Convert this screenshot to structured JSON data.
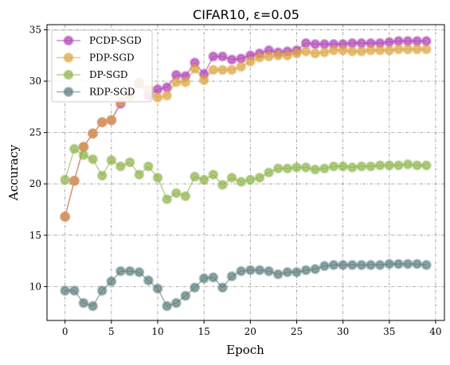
{
  "chart_data": {
    "type": "line",
    "title": "CIFAR10, ε=0.05",
    "xlabel": "Epoch",
    "ylabel": "Accuracy",
    "xlim": [
      -1.95,
      40.95
    ],
    "ylim": [
      6.7,
      35.5
    ],
    "xticks": [
      0,
      5,
      10,
      15,
      20,
      25,
      30,
      35,
      40
    ],
    "yticks": [
      10,
      15,
      20,
      25,
      30,
      35
    ],
    "grid": true,
    "legend_position": "top-left",
    "x": [
      0,
      1,
      2,
      3,
      4,
      5,
      6,
      7,
      8,
      9,
      10,
      11,
      12,
      13,
      14,
      15,
      16,
      17,
      18,
      19,
      20,
      21,
      22,
      23,
      24,
      25,
      26,
      27,
      28,
      29,
      30,
      31,
      32,
      33,
      34,
      35,
      36,
      37,
      38,
      39
    ],
    "series": [
      {
        "name": "PCDP-SGD",
        "color": "#b03fb5",
        "values": [
          16.8,
          20.3,
          23.6,
          24.9,
          26.0,
          26.2,
          27.8,
          28.8,
          29.8,
          28.6,
          29.2,
          29.4,
          30.6,
          30.5,
          31.8,
          30.7,
          32.4,
          32.4,
          32.1,
          32.2,
          32.5,
          32.7,
          33.0,
          32.8,
          32.9,
          33.0,
          33.7,
          33.6,
          33.6,
          33.6,
          33.6,
          33.7,
          33.7,
          33.7,
          33.7,
          33.8,
          33.9,
          33.9,
          33.9,
          33.9
        ]
      },
      {
        "name": "PDP-SGD",
        "color": "#dba43e",
        "values": [
          16.8,
          20.3,
          23.6,
          24.9,
          26.0,
          26.2,
          28.0,
          28.5,
          29.8,
          29.2,
          28.4,
          28.6,
          29.9,
          29.9,
          31.2,
          30.1,
          31.1,
          31.1,
          31.1,
          31.4,
          31.9,
          32.3,
          32.4,
          32.5,
          32.5,
          32.7,
          32.9,
          32.7,
          32.8,
          33.0,
          33.0,
          32.9,
          32.9,
          33.0,
          33.0,
          33.0,
          33.1,
          33.1,
          33.1,
          33.1
        ]
      },
      {
        "name": "DP-SGD",
        "color": "#8db34a",
        "values": [
          20.4,
          23.4,
          22.8,
          22.4,
          20.8,
          22.3,
          21.7,
          22.1,
          20.9,
          21.7,
          20.6,
          18.5,
          19.1,
          18.8,
          20.7,
          20.4,
          20.9,
          19.9,
          20.6,
          20.2,
          20.4,
          20.6,
          21.1,
          21.5,
          21.5,
          21.6,
          21.6,
          21.4,
          21.5,
          21.7,
          21.7,
          21.6,
          21.7,
          21.7,
          21.8,
          21.8,
          21.8,
          21.9,
          21.8,
          21.8
        ]
      },
      {
        "name": "RDP-SGD",
        "color": "#5a7c7d",
        "values": [
          9.6,
          9.6,
          8.4,
          8.1,
          9.6,
          10.5,
          11.5,
          11.5,
          11.4,
          10.6,
          9.8,
          8.1,
          8.4,
          9.1,
          9.9,
          10.8,
          10.9,
          9.9,
          11.0,
          11.5,
          11.6,
          11.6,
          11.5,
          11.2,
          11.4,
          11.4,
          11.6,
          11.7,
          12.0,
          12.1,
          12.1,
          12.1,
          12.1,
          12.1,
          12.1,
          12.2,
          12.2,
          12.2,
          12.2,
          12.1
        ]
      }
    ]
  }
}
